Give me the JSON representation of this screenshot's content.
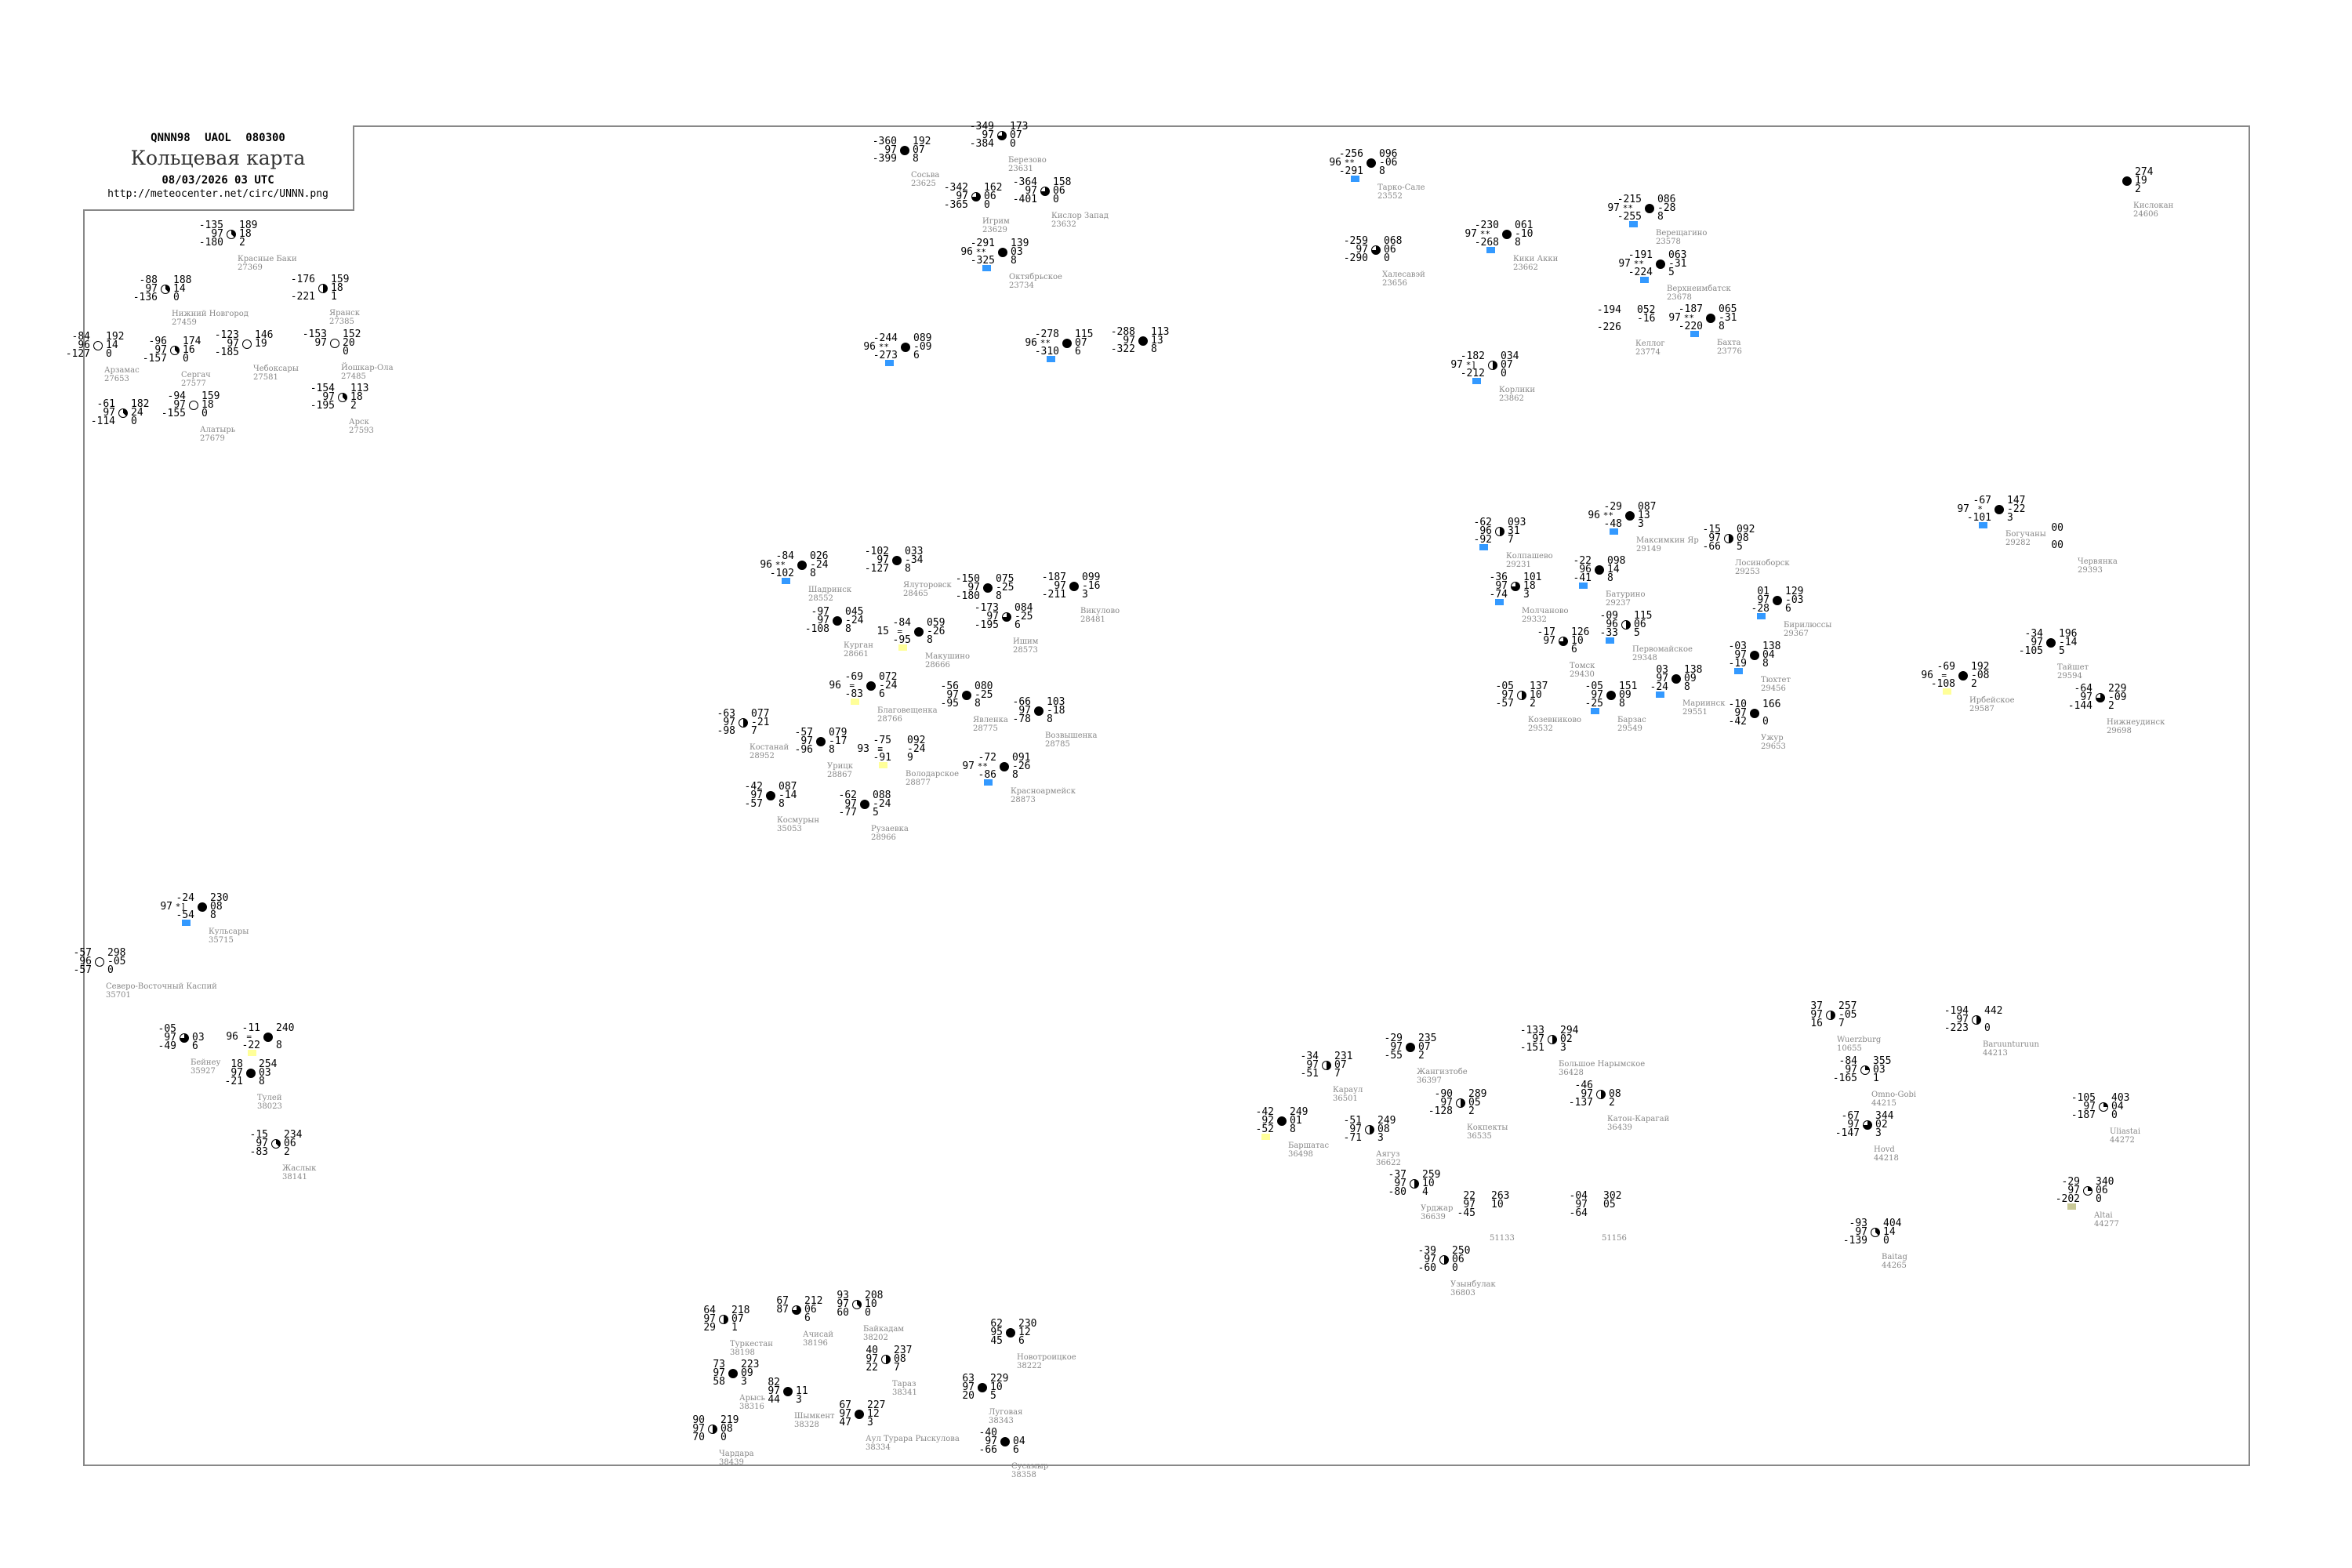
{
  "header": {
    "code": "QNNN98 UAOL 080300",
    "title": "Кольцевая карта",
    "date": "08/03/2026 03 UTC",
    "url": "http://meteocenter.net/circ/UNNN.png"
  },
  "flag_colors": {
    "blue": "#3399ff",
    "yellow": "#ffff99",
    "olive": "#c8c896",
    "lightblue": "#99ccff"
  },
  "stations": [
    {
      "name": "Тарко-Сале",
      "id": "23552",
      "tl": "-256",
      "ml": "96",
      "bl": "-291",
      "tr": "096",
      "mr": "-06",
      "br": "8",
      "cover": 8,
      "ww": "**",
      "flag": "blue"
    },
    {
      "name": "Халесавэй",
      "id": "23656",
      "tl": "-259",
      "ml": "97",
      "bl": "-290",
      "tr": "068",
      "mr": "06",
      "br": "0",
      "cover": 6
    },
    {
      "name": "Кики Акки",
      "id": "23662",
      "tl": "-230",
      "ml": "97",
      "bl": "-268",
      "tr": "061",
      "mr": "-10",
      "br": "8",
      "cover": 8,
      "ww": "**",
      "flag": "blue"
    },
    {
      "name": "Верещагино",
      "id": "23578",
      "tl": "-215",
      "ml": "97",
      "bl": "-255",
      "tr": "086",
      "mr": "-28",
      "br": "8",
      "cover": 8,
      "ww": "**",
      "flag": "blue"
    },
    {
      "name": "Верхнеимбатск",
      "id": "23678",
      "tl": "-191",
      "ml": "97",
      "bl": "-224",
      "tr": "063",
      "mr": "-31",
      "br": "5",
      "cover": 8,
      "ww": "**",
      "flag": "blue"
    },
    {
      "name": "Келлог",
      "id": "23774",
      "tl": "-194",
      "ml": "",
      "bl": "-226",
      "tr": "052",
      "mr": "-16",
      "br": "",
      "cover": -1
    },
    {
      "name": "Бахта",
      "id": "23776",
      "tl": "-187",
      "ml": "97",
      "bl": "-220",
      "tr": "065",
      "mr": "-31",
      "br": "8",
      "cover": 8,
      "ww": "**",
      "flag": "blue"
    },
    {
      "name": "Корлики",
      "id": "23862",
      "tl": "-182",
      "ml": "97",
      "bl": "-212",
      "tr": "034",
      "mr": "07",
      "br": "0",
      "cover": 4,
      "ww": "*]",
      "flag": "blue"
    },
    {
      "name": "Кислокан",
      "id": "24606",
      "tl": "",
      "ml": "",
      "bl": "",
      "tr": "274",
      "mr": "19",
      "br": "2",
      "cover": 8
    },
    {
      "name": "Сосьва",
      "id": "23625",
      "tl": "-360",
      "ml": "97",
      "bl": "-399",
      "tr": "192",
      "mr": "07",
      "br": "8",
      "cover": 8
    },
    {
      "name": "Березово",
      "id": "23631",
      "tl": "-349",
      "ml": "97",
      "bl": "-384",
      "tr": "173",
      "mr": "07",
      "br": "0",
      "cover": 6
    },
    {
      "name": "Игрим",
      "id": "23629",
      "tl": "-342",
      "ml": "97",
      "bl": "-365",
      "tr": "162",
      "mr": "06",
      "br": "0",
      "cover": 6
    },
    {
      "name": "Кислор Запад",
      "id": "23632",
      "tl": "-364",
      "ml": "97",
      "bl": "-401",
      "tr": "158",
      "mr": "06",
      "br": "0",
      "cover": 6
    },
    {
      "name": "Октябрьское",
      "id": "23734",
      "tl": "-291",
      "ml": "96",
      "bl": "-325",
      "tr": "139",
      "mr": "03",
      "br": "8",
      "cover": 8,
      "ww": "**",
      "flag": "blue"
    },
    {
      "name": "",
      "id": "",
      "tl": "-244",
      "ml": "96",
      "bl": "-273",
      "tr": "089",
      "mr": "-09",
      "br": "6",
      "cover": 8,
      "ww": "**",
      "flag": "blue"
    },
    {
      "name": "",
      "id": "",
      "tl": "-278",
      "ml": "96",
      "bl": "-310",
      "tr": "115",
      "mr": "07",
      "br": "6",
      "cover": 8,
      "ww": "**",
      "flag": "blue"
    },
    {
      "name": "",
      "id": "",
      "tl": "-288",
      "ml": "97",
      "bl": "-322",
      "tr": "113",
      "mr": "13",
      "br": "8",
      "cover": 8
    },
    {
      "name": "Красные Баки",
      "id": "27369",
      "tl": "-135",
      "ml": "97",
      "bl": "-180",
      "tr": "189",
      "mr": "18",
      "br": "2",
      "cover": 3
    },
    {
      "name": "Нижний Новгород",
      "id": "27459",
      "tl": "-88",
      "ml": "97",
      "bl": "-136",
      "tr": "188",
      "mr": "14",
      "br": "0",
      "cover": 3
    },
    {
      "name": "Арзамас",
      "id": "27653",
      "tl": "-84",
      "ml": "96",
      "bl": "-127",
      "tr": "192",
      "mr": "14",
      "br": "0",
      "cover": 0
    },
    {
      "name": "Сергач",
      "id": "27577",
      "tl": "-96",
      "ml": "97",
      "bl": "-157",
      "tr": "174",
      "mr": "16",
      "br": "0",
      "cover": 3
    },
    {
      "name": "Чебоксары",
      "id": "27581",
      "tl": "-123",
      "ml": "97",
      "bl": "-185",
      "tr": "146",
      "mr": "19",
      "br": "",
      "cover": 0
    },
    {
      "name": "Йошкар-Ола",
      "id": "27485",
      "tl": "-153",
      "ml": "97",
      "bl": "",
      "tr": "152",
      "mr": "20",
      "br": "0",
      "cover": 0
    },
    {
      "name": "Яранск",
      "id": "27385",
      "tl": "-176",
      "ml": "",
      "bl": "-221",
      "tr": "159",
      "mr": "18",
      "br": "1",
      "cover": 4
    },
    {
      "name": "Алатырь",
      "id": "27679",
      "tl": "-94",
      "ml": "97",
      "bl": "-155",
      "tr": "159",
      "mr": "18",
      "br": "0",
      "cover": 0
    },
    {
      "name": "",
      "id": "",
      "tl": "-61",
      "ml": "97",
      "bl": "-114",
      "tr": "182",
      "mr": "24",
      "br": "0",
      "cover": 3
    },
    {
      "name": "Арск",
      "id": "27593",
      "tl": "-154",
      "ml": "97",
      "bl": "-195",
      "tr": "113",
      "mr": "18",
      "br": "2",
      "cover": 3
    },
    {
      "name": "Шадринск",
      "id": "28552",
      "tl": "-84",
      "ml": "96",
      "bl": "-102",
      "tr": "026",
      "mr": "-24",
      "br": "8",
      "cover": 8,
      "ww": "**",
      "flag": "blue"
    },
    {
      "name": "Ялуторовск",
      "id": "28465",
      "tl": "-102",
      "ml": "97",
      "bl": "-127",
      "tr": "033",
      "mr": "-34",
      "br": "8",
      "cover": 8
    },
    {
      "name": "Курган",
      "id": "28661",
      "tl": "-97",
      "ml": "97",
      "bl": "-108",
      "tr": "045",
      "mr": "-24",
      "br": "8",
      "cover": 8
    },
    {
      "name": "Ишим",
      "id": "28573",
      "tl": "-173",
      "ml": "97",
      "bl": "-195",
      "tr": "084",
      "mr": "-25",
      "br": "6",
      "cover": 6
    },
    {
      "name": "",
      "id": "",
      "tl": "-150",
      "ml": "97",
      "bl": "-180",
      "tr": "075",
      "mr": "-25",
      "br": "8",
      "cover": 8
    },
    {
      "name": "Викулово",
      "id": "28481",
      "tl": "-187",
      "ml": "97",
      "bl": "-211",
      "tr": "099",
      "mr": "-16",
      "br": "3",
      "cover": 8
    },
    {
      "name": "Макушино",
      "id": "28666",
      "tl": "-84",
      "ml": "15",
      "bl": "-95",
      "tr": "059",
      "mr": "-26",
      "br": "8",
      "cover": 8,
      "ww": "=",
      "flag": "yellow"
    },
    {
      "name": "Благовещенка",
      "id": "28766",
      "tl": "-69",
      "ml": "96",
      "bl": "-83",
      "tr": "072",
      "mr": "-24",
      "br": "6",
      "cover": 8,
      "ww": "=",
      "flag": "yellow"
    },
    {
      "name": "Явленка",
      "id": "28775",
      "tl": "-56",
      "ml": "97",
      "bl": "-95",
      "tr": "080",
      "mr": "-25",
      "br": "8",
      "cover": 8
    },
    {
      "name": "Костанай",
      "id": "28952",
      "tl": "-63",
      "ml": "97",
      "bl": "-98",
      "tr": "077",
      "mr": "-21",
      "br": "7",
      "cover": 4
    },
    {
      "name": "Урицк",
      "id": "28867",
      "tl": "-57",
      "ml": "97",
      "bl": "-96",
      "tr": "079",
      "mr": "-17",
      "br": "8",
      "cover": 8
    },
    {
      "name": "Космурын",
      "id": "35053",
      "tl": "-42",
      "ml": "97",
      "bl": "-57",
      "tr": "087",
      "mr": "-14",
      "br": "8",
      "cover": 8
    },
    {
      "name": "Рузаевка",
      "id": "28966",
      "tl": "-62",
      "ml": "97",
      "bl": "-77",
      "tr": "088",
      "mr": "-24",
      "br": "5",
      "cover": 8
    },
    {
      "name": "Володарское",
      "id": "28877",
      "tl": "-75",
      "ml": "93",
      "bl": "-91",
      "tr": "092",
      "mr": "-24",
      "br": "9",
      "cover": -1,
      "ww": "≡",
      "flag": "yellow"
    },
    {
      "name": "Красноармейск",
      "id": "28873",
      "tl": "-72",
      "ml": "97",
      "bl": "-86",
      "tr": "091",
      "mr": "-26",
      "br": "8",
      "cover": 8,
      "ww": "**",
      "flag": "blue"
    },
    {
      "name": "Возвышенка",
      "id": "28785",
      "tl": "-66",
      "ml": "97",
      "bl": "-78",
      "tr": "103",
      "mr": "-18",
      "br": "8",
      "cover": 8
    },
    {
      "name": "Максимкин Яр",
      "id": "29149",
      "tl": "-29",
      "ml": "96",
      "bl": "-48",
      "tr": "087",
      "mr": "13",
      "br": "3",
      "cover": 8,
      "ww": "**",
      "flag": "blue"
    },
    {
      "name": "Лосиноборск",
      "id": "29253",
      "tl": "-15",
      "ml": "97",
      "bl": "-66",
      "tr": "092",
      "mr": "08",
      "br": "5",
      "cover": 4
    },
    {
      "name": "Колпашево",
      "id": "29231",
      "tl": "-62",
      "ml": "96",
      "bl": "-92",
      "tr": "093",
      "mr": "31",
      "br": "7",
      "cover": 4,
      "flag": "blue"
    },
    {
      "name": "Батурино",
      "id": "29237",
      "tl": "-22",
      "ml": "96",
      "bl": "-41",
      "tr": "098",
      "mr": "14",
      "br": "8",
      "cover": 8,
      "flag": "blue"
    },
    {
      "name": "Молчаново",
      "id": "29332",
      "tl": "-36",
      "ml": "97",
      "bl": "-74",
      "tr": "101",
      "mr": "18",
      "br": "3",
      "cover": 6,
      "flag": "blue"
    },
    {
      "name": "Первомайское",
      "id": "29348",
      "tl": "-09",
      "ml": "96",
      "bl": "-33",
      "tr": "115",
      "mr": "06",
      "br": "5",
      "cover": 4,
      "flag": "blue"
    },
    {
      "name": "Томск",
      "id": "29430",
      "tl": "-17",
      "ml": "97",
      "bl": "",
      "tr": "126",
      "mr": "10",
      "br": "6",
      "cover": 6
    },
    {
      "name": "Козевниково",
      "id": "29532",
      "tl": "-05",
      "ml": "97",
      "bl": "-57",
      "tr": "137",
      "mr": "10",
      "br": "2",
      "cover": 4
    },
    {
      "name": "Мариинск",
      "id": "29551",
      "tl": "03",
      "ml": "97",
      "bl": "-24",
      "tr": "138",
      "mr": "09",
      "br": "8",
      "cover": 8,
      "flag": "blue"
    },
    {
      "name": "Тюхтет",
      "id": "29456",
      "tl": "-03",
      "ml": "97",
      "bl": "-19",
      "tr": "138",
      "mr": "04",
      "br": "8",
      "cover": 8,
      "flag": "blue"
    },
    {
      "name": "Бирилюссы",
      "id": "29367",
      "tl": "01",
      "ml": "97",
      "bl": "-28",
      "tr": "129",
      "mr": "-03",
      "br": "6",
      "cover": 8,
      "flag": "blue"
    },
    {
      "name": "Барзас",
      "id": "29549",
      "tl": "-05",
      "ml": "97",
      "bl": "-25",
      "tr": "151",
      "mr": "09",
      "br": "8",
      "cover": 8,
      "flag": "blue"
    },
    {
      "name": "Ужур",
      "id": "29653",
      "tl": "-10",
      "ml": "97",
      "bl": "-42",
      "tr": "166",
      "mr": "",
      "br": "0",
      "cover": 8
    },
    {
      "name": "Богучаны",
      "id": "29282",
      "tl": "-67",
      "ml": "97",
      "bl": "-101",
      "tr": "147",
      "mr": "-22",
      "br": "3",
      "cover": 8,
      "ww": "*",
      "flag": "blue"
    },
    {
      "name": "Червянка",
      "id": "29393",
      "tl": "00",
      "ml": "",
      "bl": "00",
      "tr": "",
      "mr": "",
      "br": "",
      "cover": -1
    },
    {
      "name": "Тайшет",
      "id": "29594",
      "tl": "-34",
      "ml": "97",
      "bl": "-105",
      "tr": "196",
      "mr": "-14",
      "br": "5",
      "cover": 8
    },
    {
      "name": "Нижнеудинск",
      "id": "29698",
      "tl": "-64",
      "ml": "97",
      "bl": "-144",
      "tr": "229",
      "mr": "-09",
      "br": "2",
      "cover": 6
    },
    {
      "name": "Ирбейское",
      "id": "29587",
      "tl": "-69",
      "ml": "96",
      "bl": "-108",
      "tr": "192",
      "mr": "-08",
      "br": "2",
      "cover": 8,
      "ww": "=",
      "flag": "yellow"
    },
    {
      "name": "Караул",
      "id": "36501",
      "tl": "-34",
      "ml": "97",
      "bl": "-51",
      "tr": "231",
      "mr": "07",
      "br": "7",
      "cover": 4
    },
    {
      "name": "Жангизтобе",
      "id": "36397",
      "tl": "-29",
      "ml": "97",
      "bl": "-55",
      "tr": "235",
      "mr": "07",
      "br": "2",
      "cover": 8
    },
    {
      "name": "Кокпекты",
      "id": "36535",
      "tl": "-90",
      "ml": "97",
      "bl": "-128",
      "tr": "289",
      "mr": "05",
      "br": "2",
      "cover": 4
    },
    {
      "name": "Большое Нарымское",
      "id": "36428",
      "tl": "-133",
      "ml": "97",
      "bl": "-151",
      "tr": "294",
      "mr": "02",
      "br": "3",
      "cover": 4
    },
    {
      "name": "Катон-Карагай",
      "id": "36439",
      "tl": "-46",
      "ml": "97",
      "bl": "-137",
      "tr": "",
      "mr": "08",
      "br": "2",
      "cover": 4
    },
    {
      "name": "Баршатас",
      "id": "36498",
      "tl": "-42",
      "ml": "92",
      "bl": "-52",
      "tr": "249",
      "mr": "01",
      "br": "8",
      "cover": 8,
      "flag": "yellow"
    },
    {
      "name": "Аягуз",
      "id": "36622",
      "tl": "-51",
      "ml": "97",
      "bl": "-71",
      "tr": "249",
      "mr": "08",
      "br": "3",
      "cover": 4
    },
    {
      "name": "Урджар",
      "id": "36639",
      "tl": "-37",
      "ml": "97",
      "bl": "-80",
      "tr": "259",
      "mr": "10",
      "br": "4",
      "cover": 4
    },
    {
      "name": "Узынбулак",
      "id": "36803",
      "tl": "-39",
      "ml": "97",
      "bl": "-60",
      "tr": "250",
      "mr": "06",
      "br": "0",
      "cover": 4
    },
    {
      "name": "",
      "id": "51133",
      "tl": "22",
      "ml": "97",
      "bl": "-45",
      "tr": "263",
      "mr": "10",
      "br": "",
      "cover": -1
    },
    {
      "name": "",
      "id": "51156",
      "tl": "-04",
      "ml": "97",
      "bl": "-64",
      "tr": "302",
      "mr": "05",
      "br": "",
      "cover": -1
    },
    {
      "name": "Wuerzburg",
      "id": "10655",
      "tl": "37",
      "ml": "97",
      "bl": "16",
      "tr": "257",
      "mr": "-05",
      "br": "7",
      "cover": 4
    },
    {
      "name": "Baruunturuun",
      "id": "44213",
      "tl": "-194",
      "ml": "97",
      "bl": "-223",
      "tr": "442",
      "mr": "",
      "br": "0",
      "cover": 4
    },
    {
      "name": "Omno-Gobi",
      "id": "44215",
      "tl": "-84",
      "ml": "97",
      "bl": "-165",
      "tr": "355",
      "mr": "03",
      "br": "1",
      "cover": 2
    },
    {
      "name": "Hovd",
      "id": "44218",
      "tl": "-67",
      "ml": "97",
      "bl": "-147",
      "tr": "344",
      "mr": "02",
      "br": "3",
      "cover": 6
    },
    {
      "name": "Uliastai",
      "id": "44272",
      "tl": "-105",
      "ml": "97",
      "bl": "-187",
      "tr": "403",
      "mr": "04",
      "br": "0",
      "cover": 2
    },
    {
      "name": "Altai",
      "id": "44277",
      "tl": "-29",
      "ml": "97",
      "bl": "-202",
      "tr": "340",
      "mr": "06",
      "br": "0",
      "cover": 2,
      "flag": "olive"
    },
    {
      "name": "Baitag",
      "id": "44265",
      "tl": "-93",
      "ml": "97",
      "bl": "-139",
      "tr": "404",
      "mr": "14",
      "br": "0",
      "cover": 3
    },
    {
      "name": "Северо-Восточный Каспий",
      "id": "35701",
      "tl": "-57",
      "ml": "96",
      "bl": "-57",
      "tr": "298",
      "mr": "-05",
      "br": "0",
      "cover": 0
    },
    {
      "name": "Кульсары",
      "id": "35715",
      "tl": "-24",
      "ml": "97",
      "bl": "-54",
      "tr": "230",
      "mr": "08",
      "br": "8",
      "cover": 8,
      "ww": "*]",
      "flag": "blue"
    },
    {
      "name": "Бейнеу",
      "id": "35927",
      "tl": "-05",
      "ml": "97",
      "bl": "-49",
      "tr": "",
      "mr": "03",
      "br": "6",
      "cover": 6
    },
    {
      "name": "",
      "id": "",
      "tl": "-11",
      "ml": "96",
      "bl": "-22",
      "tr": "240",
      "mr": "",
      "br": "8",
      "cover": 8,
      "ww": "=",
      "flag": "yellow"
    },
    {
      "name": "Тулей",
      "id": "38023",
      "tl": "18",
      "ml": "97",
      "bl": "-21",
      "tr": "254",
      "mr": "03",
      "br": "8",
      "cover": 8
    },
    {
      "name": "Жаслык",
      "id": "38141",
      "tl": "-15",
      "ml": "97",
      "bl": "-83",
      "tr": "234",
      "mr": "06",
      "br": "2",
      "cover": 3
    },
    {
      "name": "Туркестан",
      "id": "38198",
      "tl": "64",
      "ml": "97",
      "bl": "29",
      "tr": "218",
      "mr": "07",
      "br": "1",
      "cover": 4
    },
    {
      "name": "Ачисай",
      "id": "38196",
      "tl": "67",
      "ml": "87",
      "bl": "",
      "tr": "212",
      "mr": "06",
      "br": "6",
      "cover": 6
    },
    {
      "name": "Байкадам",
      "id": "38202",
      "tl": "93",
      "ml": "97",
      "bl": "60",
      "tr": "208",
      "mr": "10",
      "br": "0",
      "cover": 3
    },
    {
      "name": "Арысь",
      "id": "38316",
      "tl": "73",
      "ml": "97",
      "bl": "58",
      "tr": "223",
      "mr": "09",
      "br": "3",
      "cover": 8
    },
    {
      "name": "Шымкент",
      "id": "38328",
      "tl": "82",
      "ml": "97",
      "bl": "44",
      "tr": "",
      "mr": "11",
      "br": "3",
      "cover": 8
    },
    {
      "name": "Аул Турара Рыскулова",
      "id": "38334",
      "tl": "67",
      "ml": "97",
      "bl": "47",
      "tr": "227",
      "mr": "12",
      "br": "3",
      "cover": 8
    },
    {
      "name": "Тараз",
      "id": "38341",
      "tl": "40",
      "ml": "97",
      "bl": "22",
      "tr": "237",
      "mr": "08",
      "br": "7",
      "cover": 4
    },
    {
      "name": "Луговая",
      "id": "38343",
      "tl": "63",
      "ml": "97",
      "bl": "20",
      "tr": "229",
      "mr": "10",
      "br": "5",
      "cover": 8
    },
    {
      "name": "Чардара",
      "id": "38439",
      "tl": "90",
      "ml": "97",
      "bl": "70",
      "tr": "219",
      "mr": "08",
      "br": "0",
      "cover": 4
    },
    {
      "name": "Сусамыр",
      "id": "38358",
      "tl": "-40",
      "ml": "97",
      "bl": "-66",
      "tr": "",
      "mr": "04",
      "br": "6",
      "cover": 8
    },
    {
      "name": "Новотроицкое",
      "id": "38222",
      "tl": "62",
      "ml": "95",
      "bl": "45",
      "tr": "230",
      "mr": "12",
      "br": "6",
      "cover": 8
    }
  ]
}
